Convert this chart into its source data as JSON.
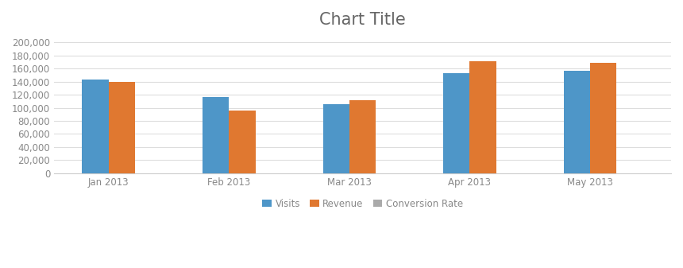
{
  "title": "Chart Title",
  "title_fontsize": 15,
  "categories": [
    "Jan 2013",
    "Feb 2013",
    "Mar 2013",
    "Apr 2013",
    "May 2013"
  ],
  "visits": [
    143000,
    116000,
    105000,
    153000,
    157000
  ],
  "revenue": [
    139000,
    96000,
    111000,
    171000,
    168000
  ],
  "conversion_rate": [
    0,
    0,
    0,
    0,
    0
  ],
  "bar_color_visits": "#4E96C8",
  "bar_color_revenue": "#E07830",
  "bar_color_conv": "#AAAAAA",
  "background_color": "#FFFFFF",
  "plot_area_color": "#FFFFFF",
  "ylim": [
    0,
    210000
  ],
  "yticks": [
    0,
    20000,
    40000,
    60000,
    80000,
    100000,
    120000,
    140000,
    160000,
    180000,
    200000
  ],
  "legend_labels": [
    "Visits",
    "Revenue",
    "Conversion Rate"
  ],
  "bar_width": 0.22,
  "grid_color": "#DDDDDD",
  "axis_color": "#CCCCCC",
  "tick_label_color": "#888888",
  "tick_fontsize": 8.5,
  "title_color": "#666666"
}
